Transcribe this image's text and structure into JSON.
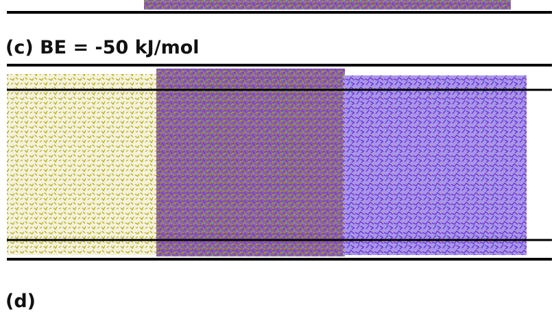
{
  "panels": [
    {
      "label": "(c) BE = -50 kJ/mol"
    },
    {
      "label": "(d)"
    }
  ]
}
